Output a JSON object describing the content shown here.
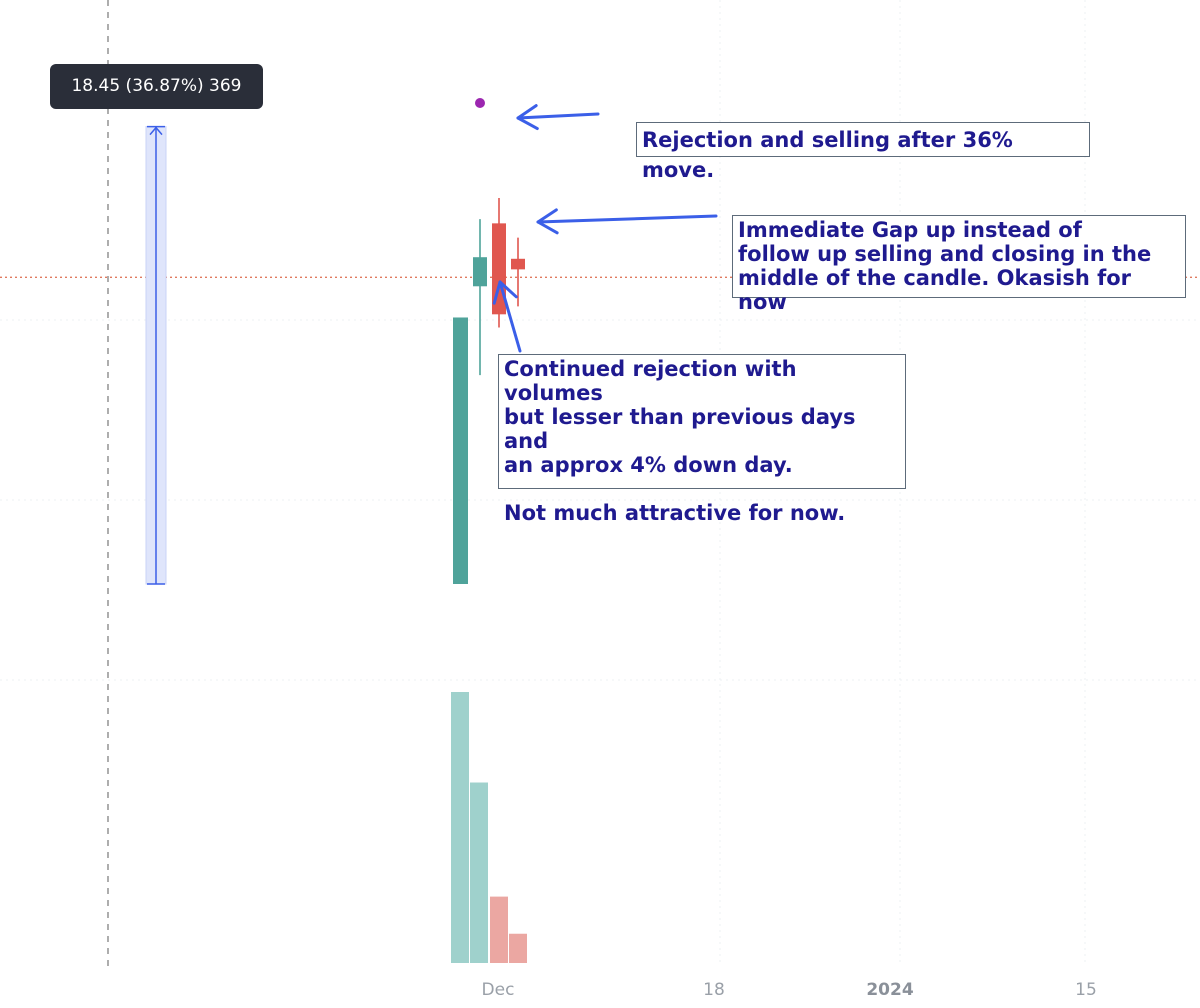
{
  "chart_data": {
    "type": "candlestick",
    "tooltip": "18.45 (36.87%) 369",
    "x_axis": {
      "ticks": [
        {
          "label": "Dec",
          "major": false
        },
        {
          "label": "18",
          "major": false
        },
        {
          "label": "2024",
          "major": true
        },
        {
          "label": "15",
          "major": false
        }
      ]
    },
    "candles": [
      {
        "direction": "up",
        "open": 56.3,
        "high": 69.0,
        "low": 39.5,
        "close": 61.8
      },
      {
        "direction": "down",
        "open": 68.2,
        "high": 73.0,
        "low": 48.5,
        "close": 51.0
      },
      {
        "direction": "down",
        "open": 61.5,
        "high": 65.5,
        "low": 52.5,
        "close": 59.5
      }
    ],
    "tall_up_candle": {
      "open": 0,
      "close": 50.4
    },
    "measure_range": {
      "from": 0,
      "to": 86.5
    },
    "volume": {
      "values": [
        100,
        66.6,
        24.5,
        10.8
      ],
      "directions": [
        "up",
        "up",
        "down",
        "down"
      ]
    },
    "price_line": 58.0,
    "colors": {
      "up": "#4fa39a",
      "down": "#e0574f",
      "volume_up": "#9fd1cc",
      "volume_down": "#eba7a2",
      "annotation_text": "#1f1a8f",
      "arrow": "#3b5fe8",
      "measure_fill": "#dfe5fb",
      "measure_line": "#3b5fe8",
      "marker": "#9c27b0",
      "price_line": "#e07a5f",
      "crosshair": "#777777",
      "grid": "#eef0f3"
    },
    "annotations": [
      "Rejection and selling after 36% move.",
      "Immediate Gap up instead of\nfollow up selling and closing in the\nmiddle of the candle. Okasish for now",
      "Continued rejection with volumes\nbut lesser than previous days and\nan approx 4% down day.\n\nNot much attractive for now."
    ]
  }
}
